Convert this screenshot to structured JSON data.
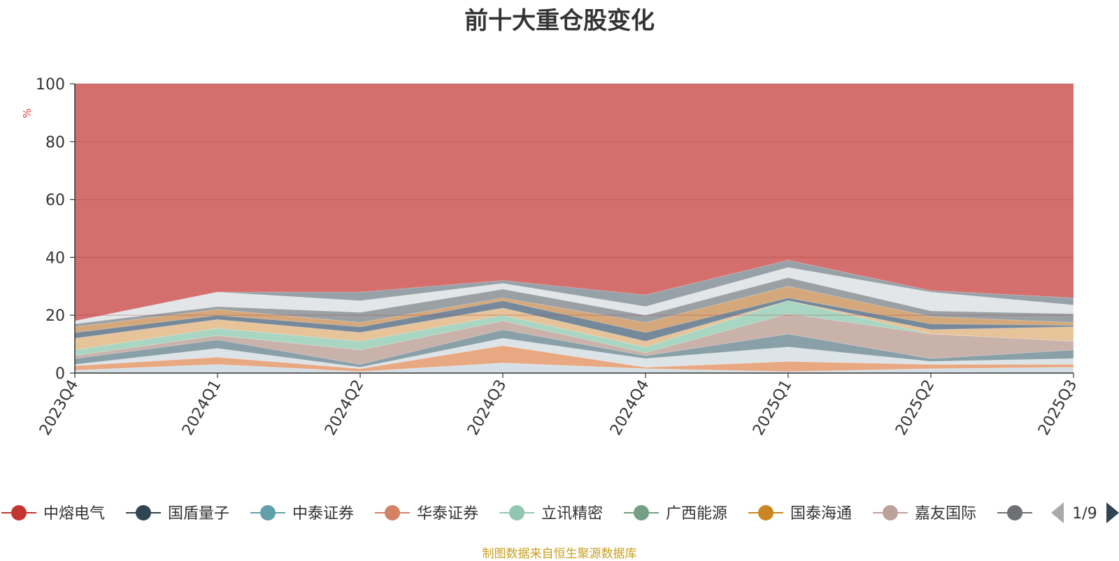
{
  "chart_data": {
    "type": "area",
    "title": "前十大重仓股变化",
    "ylabel": "%",
    "ylim": [
      0,
      100
    ],
    "yticks": [
      0,
      20,
      40,
      60,
      80,
      100
    ],
    "categories": [
      "2023Q4",
      "2024Q1",
      "2024Q2",
      "2024Q3",
      "2024Q4",
      "2025Q1",
      "2025Q2",
      "2025Q3"
    ],
    "stacked_boundaries": [
      {
        "color": "#d5e0e6",
        "values": [
          1.0,
          3.0,
          0.5,
          3.5,
          1.5,
          0.5,
          1.5,
          2.0
        ]
      },
      {
        "color": "#e8a882",
        "values": [
          2.5,
          5.5,
          1.5,
          9.5,
          2.0,
          4.0,
          3.0,
          3.0
        ]
      },
      {
        "color": "#dde4e8",
        "values": [
          3.0,
          8.5,
          2.0,
          12.0,
          5.0,
          9.0,
          4.0,
          5.0
        ]
      },
      {
        "color": "#8aa0a8",
        "values": [
          5.0,
          11.5,
          3.0,
          15.0,
          6.0,
          13.5,
          5.0,
          8.0
        ]
      },
      {
        "color": "#c9b2a9",
        "values": [
          6.0,
          13.0,
          8.0,
          18.0,
          7.0,
          20.5,
          13.5,
          11.0
        ]
      },
      {
        "color": "#a9d6c2",
        "values": [
          8.0,
          15.5,
          11.0,
          20.0,
          9.0,
          25.0,
          13.5,
          11.0
        ]
      },
      {
        "color": "#e6c399",
        "values": [
          12.0,
          18.5,
          14.0,
          22.5,
          11.0,
          25.0,
          15.0,
          16.0
        ]
      },
      {
        "color": "#76899a",
        "values": [
          14.0,
          20.0,
          16.0,
          25.0,
          14.0,
          26.0,
          17.0,
          16.5
        ]
      },
      {
        "color": "#d4a87a",
        "values": [
          16.0,
          22.0,
          17.5,
          26.0,
          17.5,
          30.0,
          19.5,
          17.5
        ]
      },
      {
        "color": "#9aa0a4",
        "values": [
          17.0,
          23.0,
          21.0,
          29.0,
          20.0,
          33.0,
          21.5,
          20.5
        ]
      },
      {
        "color": "#e2e6e9",
        "values": [
          18.0,
          28.0,
          25.0,
          31.0,
          23.0,
          36.5,
          28.0,
          23.5
        ]
      },
      {
        "color": "#97a1a8",
        "values": [
          18.0,
          28.0,
          28.0,
          32.0,
          27.0,
          39.0,
          28.5,
          26.0
        ]
      }
    ],
    "base_fill_color": "#d46f6d",
    "grid": true,
    "legend_position": "bottom",
    "legend": [
      {
        "name": "中熔电气",
        "color": "#c23531"
      },
      {
        "name": "国盾量子",
        "color": "#2f4554"
      },
      {
        "name": "中泰证券",
        "color": "#61a0a8"
      },
      {
        "name": "华泰证券",
        "color": "#d48265"
      },
      {
        "name": "立讯精密",
        "color": "#91c7ae"
      },
      {
        "name": "广西能源",
        "color": "#749f83"
      },
      {
        "name": "国泰海通",
        "color": "#ca8622"
      },
      {
        "name": "嘉友国际",
        "color": "#bda29a"
      },
      {
        "name": "",
        "color": "#6e7074"
      }
    ],
    "pager": "1/9"
  },
  "footer": {
    "source_text": "制图数据来自恒生聚源数据库",
    "source_color": "#c8a020"
  }
}
